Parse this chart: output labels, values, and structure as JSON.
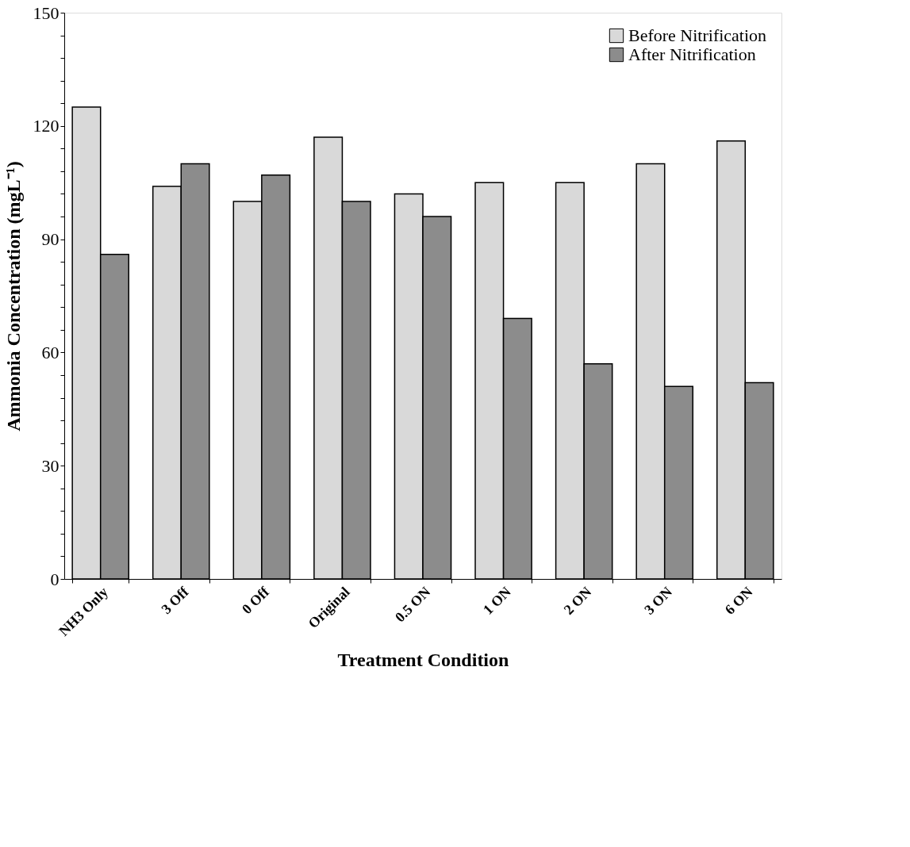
{
  "chart_data": {
    "type": "bar",
    "xlabel": "Treatment Condition",
    "ylabel": "Ammonia Concentration (mgL⁻¹)",
    "categories": [
      "NH3 Only",
      "3 Off",
      "0 Off",
      "Original",
      "0.5 ON",
      "1 ON",
      "2 ON",
      "3 ON",
      "6 ON"
    ],
    "series": [
      {
        "name": "Before Nitrification",
        "color": "#d9d9d9",
        "values": [
          125,
          104,
          100,
          117,
          102,
          105,
          105,
          110,
          116
        ]
      },
      {
        "name": "After Nitrification",
        "color": "#8c8c8c",
        "values": [
          86,
          110,
          107,
          100,
          96,
          69,
          57,
          51,
          52
        ]
      }
    ],
    "ylim": [
      0,
      150
    ],
    "yticks": [
      0,
      {
        "value": 6,
        "label": null
      },
      {
        "value": 12,
        "label": null
      },
      {
        "value": 18,
        "label": null
      },
      {
        "value": 24,
        "label": null
      },
      30,
      {
        "value": 36,
        "label": null
      },
      {
        "value": 42,
        "label": null
      },
      {
        "value": 48,
        "label": null
      },
      {
        "value": 54,
        "label": null
      },
      60,
      {
        "value": 66,
        "label": null
      },
      {
        "value": 72,
        "label": null
      },
      {
        "value": 78,
        "label": null
      },
      {
        "value": 84,
        "label": null
      },
      90,
      {
        "value": 96,
        "label": null
      },
      {
        "value": 102,
        "label": null
      },
      {
        "value": 108,
        "label": null
      },
      {
        "value": 114,
        "label": null
      },
      120,
      {
        "value": 126,
        "label": null
      },
      {
        "value": 132,
        "label": null
      },
      {
        "value": 138,
        "label": null
      },
      {
        "value": 144,
        "label": null
      },
      150
    ],
    "grid": false,
    "legend": "top right"
  }
}
